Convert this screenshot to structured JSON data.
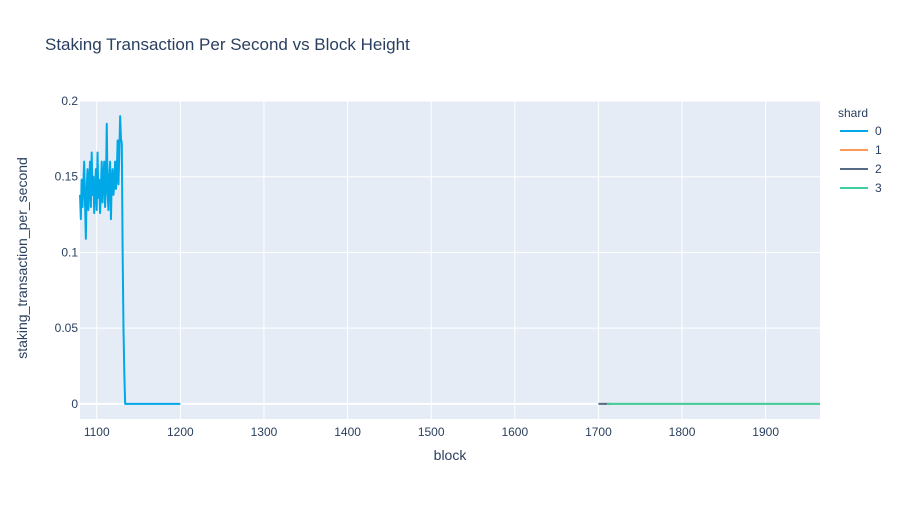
{
  "chart_data": {
    "type": "line",
    "title": "Staking Transaction Per Second vs Block Height",
    "xlabel": "block",
    "ylabel": "staking_transaction_per_second",
    "xlim": [
      1080,
      1965
    ],
    "ylim": [
      -0.01,
      0.2
    ],
    "x_ticks": [
      1100,
      1200,
      1300,
      1400,
      1500,
      1600,
      1700,
      1800,
      1900
    ],
    "y_ticks": [
      0,
      0.05,
      0.1,
      0.15,
      0.2
    ],
    "y_tick_labels": [
      "0",
      "0.05",
      "0.1",
      "0.15",
      "0.2"
    ],
    "grid": true,
    "legend": {
      "title": "shard",
      "position": "right"
    },
    "series": [
      {
        "name": "0",
        "color": "#00a8e8",
        "points": [
          [
            1080,
            0.138
          ],
          [
            1081,
            0.122
          ],
          [
            1082,
            0.148
          ],
          [
            1083,
            0.13
          ],
          [
            1084,
            0.145
          ],
          [
            1085,
            0.16
          ],
          [
            1086,
            0.133
          ],
          [
            1087,
            0.109
          ],
          [
            1088,
            0.142
          ],
          [
            1089,
            0.155
          ],
          [
            1090,
            0.128
          ],
          [
            1091,
            0.145
          ],
          [
            1092,
            0.16
          ],
          [
            1093,
            0.13
          ],
          [
            1094,
            0.166
          ],
          [
            1095,
            0.138
          ],
          [
            1096,
            0.15
          ],
          [
            1097,
            0.126
          ],
          [
            1098,
            0.142
          ],
          [
            1099,
            0.155
          ],
          [
            1100,
            0.128
          ],
          [
            1101,
            0.166
          ],
          [
            1102,
            0.136
          ],
          [
            1103,
            0.148
          ],
          [
            1104,
            0.126
          ],
          [
            1105,
            0.142
          ],
          [
            1106,
            0.16
          ],
          [
            1107,
            0.133
          ],
          [
            1108,
            0.15
          ],
          [
            1109,
            0.16
          ],
          [
            1110,
            0.13
          ],
          [
            1111,
            0.145
          ],
          [
            1112,
            0.185
          ],
          [
            1113,
            0.14
          ],
          [
            1114,
            0.128
          ],
          [
            1115,
            0.15
          ],
          [
            1116,
            0.16
          ],
          [
            1117,
            0.122
          ],
          [
            1118,
            0.148
          ],
          [
            1119,
            0.155
          ],
          [
            1120,
            0.138
          ],
          [
            1121,
            0.145
          ],
          [
            1122,
            0.16
          ],
          [
            1123,
            0.142
          ],
          [
            1124,
            0.152
          ],
          [
            1125,
            0.174
          ],
          [
            1126,
            0.145
          ],
          [
            1127,
            0.165
          ],
          [
            1128,
            0.19
          ],
          [
            1129,
            0.175
          ],
          [
            1130,
            0.172
          ],
          [
            1131,
            0.1
          ],
          [
            1132,
            0.05
          ],
          [
            1133,
            0.02
          ],
          [
            1134,
            0.0
          ],
          [
            1135,
            0.0
          ],
          [
            1150,
            0.0
          ],
          [
            1175,
            0.0
          ],
          [
            1200,
            0.0
          ]
        ]
      },
      {
        "name": "1",
        "color": "#ff9a5c",
        "points": [
          [
            1705,
            0.0
          ],
          [
            1965,
            0.0
          ]
        ]
      },
      {
        "name": "2",
        "color": "#556a85",
        "points": [
          [
            1700,
            0.0
          ],
          [
            1715,
            0.0
          ]
        ]
      },
      {
        "name": "3",
        "color": "#40cf9f",
        "points": [
          [
            1710,
            0.0
          ],
          [
            1965,
            0.0
          ]
        ]
      }
    ]
  }
}
